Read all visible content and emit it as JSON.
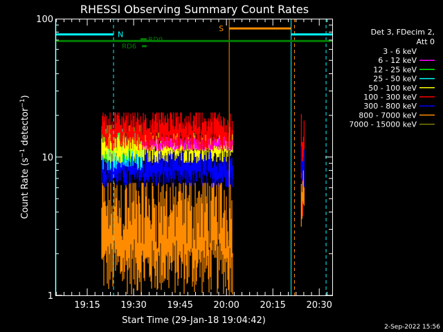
{
  "chart_data": {
    "type": "line",
    "title": "RHESSI Observing Summary Count Rates",
    "xlabel": "Start Time (29-Jan-18 19:04:42)",
    "ylabel_prefix": "Count Rate (s",
    "ylabel_sup1": "−1",
    "ylabel_mid": " detector",
    "ylabel_sup2": "−1",
    "ylabel_suffix": ")",
    "yscale": "log",
    "ylim": [
      1,
      100
    ],
    "xlim_minutes": [
      0,
      89.5
    ],
    "x_ticks": [
      {
        "minute": 10.3,
        "label": "19:15"
      },
      {
        "minute": 25.3,
        "label": "19:30"
      },
      {
        "minute": 40.3,
        "label": "19:45"
      },
      {
        "minute": 55.3,
        "label": "20:00"
      },
      {
        "minute": 70.3,
        "label": "20:15"
      },
      {
        "minute": 85.3,
        "label": "20:30"
      }
    ],
    "y_tick_labels": [
      "1",
      "10",
      "100"
    ],
    "legend_header": [
      "Det 3, FDecim 2,",
      "Att 0"
    ],
    "legend": [
      {
        "label": "3 - 6 keV",
        "color": "#000000"
      },
      {
        "label": "6 - 12 keV",
        "color": "#ff00ff"
      },
      {
        "label": "12 - 25 keV",
        "color": "#00ff00"
      },
      {
        "label": "25 - 50 keV",
        "color": "#00ffff"
      },
      {
        "label": "50 - 100 keV",
        "color": "#ffff00"
      },
      {
        "label": "100 - 300 keV",
        "color": "#ff0000"
      },
      {
        "label": "300 - 800 keV",
        "color": "#0000ff"
      },
      {
        "label": "800 - 7000 keV",
        "color": "#ff8c00"
      },
      {
        "label": "7000 - 15000 keV",
        "color": "#808000"
      }
    ],
    "series_segments": [
      {
        "band": "800 - 7000 keV",
        "color": "#ff8c00",
        "x_range": [
          15,
          57.5
        ],
        "y_range": [
          1,
          6.5
        ]
      },
      {
        "band": "300 - 800 keV",
        "color": "#0000ff",
        "x_range": [
          15,
          57.5
        ],
        "y_range": [
          6,
          11
        ]
      },
      {
        "band": "25 - 50 keV",
        "color": "#00ffff",
        "x_range": [
          15,
          28
        ],
        "y_range": [
          8,
          16
        ]
      },
      {
        "band": "12 - 25 keV",
        "color": "#00ff00",
        "x_range": [
          15,
          28
        ],
        "y_range": [
          9,
          17
        ]
      },
      {
        "band": "50 - 100 keV",
        "color": "#ffff00",
        "x_range": [
          15,
          57.5
        ],
        "y_range": [
          9,
          15
        ]
      },
      {
        "band": "6 - 12 keV",
        "color": "#ff00ff",
        "x_range": [
          28,
          57.5
        ],
        "y_range": [
          11,
          14
        ]
      },
      {
        "band": "100 - 300 keV",
        "color": "#ff0000",
        "x_range": [
          15,
          57.5
        ],
        "y_range": [
          11,
          21
        ]
      },
      {
        "band": "100 - 300 keV",
        "color": "#ff0000",
        "x_range": [
          79.5,
          80.5
        ],
        "y_range": [
          3.2,
          24
        ]
      },
      {
        "band": "300 - 800 keV",
        "color": "#0000ff",
        "x_range": [
          79.5,
          80.5
        ],
        "y_range": [
          5,
          12
        ]
      },
      {
        "band": "800 - 7000 keV",
        "color": "#ff8c00",
        "x_range": [
          79.5,
          80.5
        ],
        "y_range": [
          3,
          8
        ]
      }
    ],
    "annotations": {
      "night": {
        "label": "N",
        "color": "#00ffff",
        "segments": [
          [
            0,
            18.8
          ],
          [
            76.2,
            89.5
          ]
        ],
        "y": 77
      },
      "saa": {
        "label": "S",
        "color": "#ff8c00",
        "segments": [
          [
            56.2,
            76.2
          ]
        ],
        "y": 85
      },
      "rd_bar": {
        "color": "#008000",
        "segments": [
          [
            0,
            89.5
          ]
        ],
        "y": 69
      },
      "rd_labels": [
        {
          "label": "RD0",
          "x": 30,
          "y": 71,
          "tick": [
            27.5,
            29.5
          ]
        },
        {
          "label": "RD6",
          "x": 21.5,
          "y": 64,
          "tick": [
            28,
            29.5
          ]
        }
      ],
      "vlines": [
        {
          "x": 18.8,
          "color": "#00ffff",
          "style": "dashed"
        },
        {
          "x": 56.2,
          "color": "#ff8c00",
          "style": "solid"
        },
        {
          "x": 76.2,
          "color": "#00ffff",
          "style": "solid"
        },
        {
          "x": 77.3,
          "color": "#ff8c00",
          "style": "dashed"
        },
        {
          "x": 87.5,
          "color": "#00ffff",
          "style": "dashed"
        }
      ]
    },
    "colors": {
      "axes": "#ffffff",
      "background": "#000000",
      "left_edge_line": "#00ffff"
    }
  },
  "footer_timestamp": "2-Sep-2022 15:56"
}
